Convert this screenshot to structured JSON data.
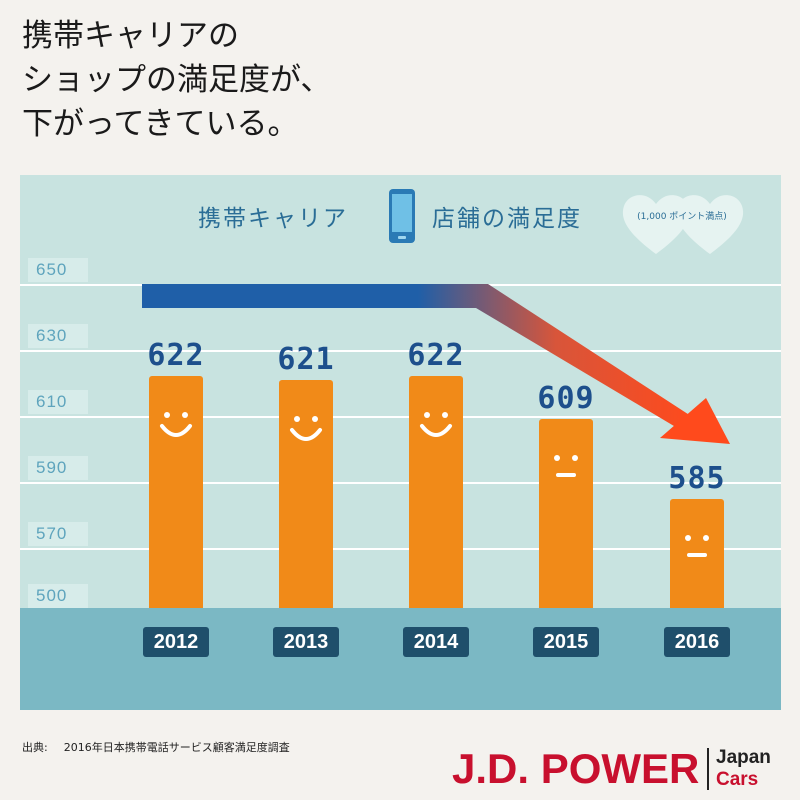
{
  "headline": [
    "携帯キャリアの",
    "ショップの満足度が、",
    "下がってきている。"
  ],
  "chart_data": {
    "type": "bar",
    "title_left": "携帯キャリア",
    "title_right": "店舗の満足度",
    "unit_note": "(1,000 ポイント満点)",
    "categories": [
      "2012",
      "2013",
      "2014",
      "2015",
      "2016"
    ],
    "values": [
      622,
      621,
      622,
      609,
      585
    ],
    "value_labels": [
      "622",
      "621",
      "622",
      "609",
      "585"
    ],
    "faces": [
      "smile",
      "smile",
      "smile",
      "neutral",
      "neutral"
    ],
    "yticks": [
      "650",
      "630",
      "610",
      "590",
      "570",
      "500"
    ],
    "ylim": [
      500,
      650
    ],
    "axis_break": true,
    "grid": true,
    "trend": "flat 2012–2014, declining to 2016",
    "colors": {
      "bar": "#f18a18",
      "value_label": "#1d4f8c",
      "trend_start": "#1f5fa8",
      "trend_end": "#ff4a1c"
    }
  },
  "source": {
    "label": "出典:",
    "text": "2016年日本携帯電話サービス顧客満足度調査"
  },
  "logo": {
    "brand": "J.D. POWER",
    "line1": "Japan",
    "line2": "Cars",
    "color": "#c8102e"
  }
}
